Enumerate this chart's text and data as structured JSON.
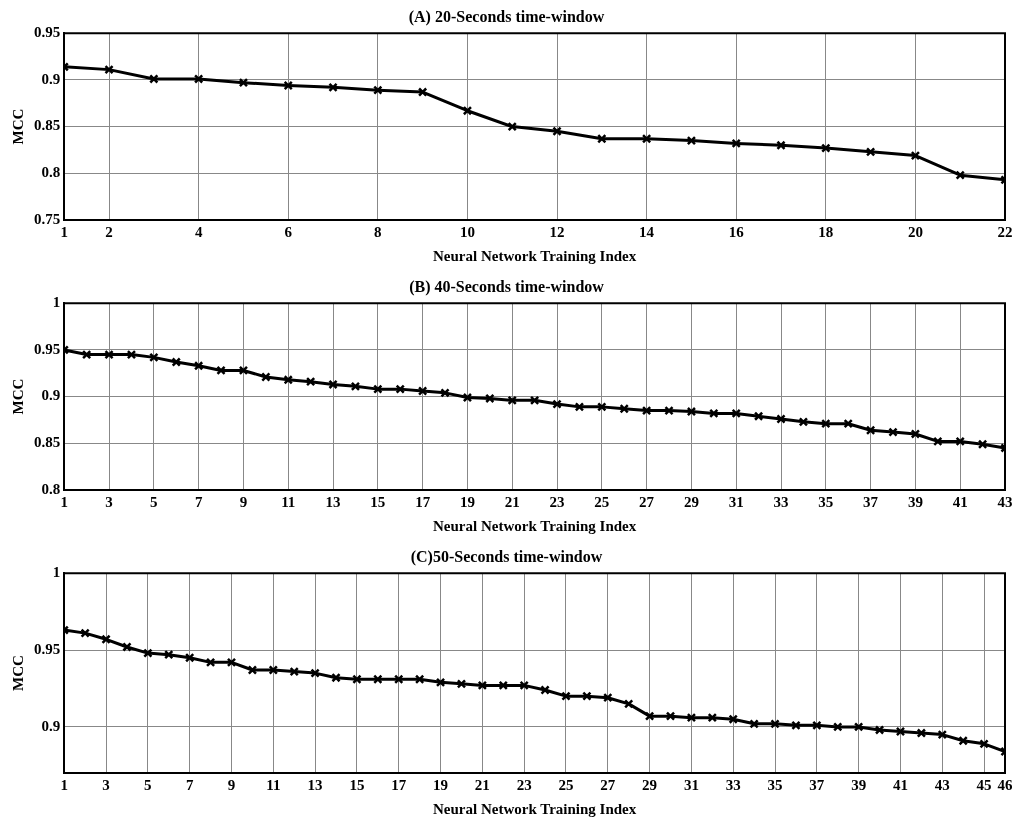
{
  "chart_data": [
    {
      "type": "line",
      "title": "(A) 20-Seconds time-window",
      "xlabel": "Neural Network Training Index",
      "ylabel": "MCC",
      "marker": "cross",
      "grid": true,
      "x": [
        1,
        2,
        3,
        4,
        5,
        6,
        7,
        8,
        9,
        10,
        11,
        12,
        13,
        14,
        15,
        16,
        17,
        18,
        19,
        20,
        21,
        22
      ],
      "series": [
        {
          "color": "#000000",
          "values": [
            0.914,
            0.911,
            0.901,
            0.901,
            0.897,
            0.894,
            0.892,
            0.889,
            0.887,
            0.867,
            0.85,
            0.845,
            0.837,
            0.837,
            0.835,
            0.832,
            0.83,
            0.827,
            0.823,
            0.819,
            0.798,
            0.793
          ]
        }
      ],
      "xlim": [
        1,
        22
      ],
      "xticks": [
        1,
        2,
        4,
        6,
        8,
        10,
        12,
        14,
        16,
        18,
        20,
        22
      ],
      "ylim": [
        0.75,
        0.95
      ],
      "yticks": [
        0.75,
        0.8,
        0.85,
        0.9,
        0.95
      ]
    },
    {
      "type": "line",
      "title": "(B) 40-Seconds time-window",
      "xlabel": "Neural Network Training Index",
      "ylabel": "MCC",
      "marker": "cross",
      "grid": true,
      "x": [
        1,
        2,
        3,
        4,
        5,
        6,
        7,
        8,
        9,
        10,
        11,
        12,
        13,
        14,
        15,
        16,
        17,
        18,
        19,
        20,
        21,
        22,
        23,
        24,
        25,
        26,
        27,
        28,
        29,
        30,
        31,
        32,
        33,
        34,
        35,
        36,
        37,
        38,
        39,
        40,
        41,
        42,
        43
      ],
      "series": [
        {
          "color": "#000000",
          "values": [
            0.95,
            0.945,
            0.945,
            0.945,
            0.942,
            0.937,
            0.933,
            0.928,
            0.928,
            0.921,
            0.918,
            0.916,
            0.913,
            0.911,
            0.908,
            0.908,
            0.906,
            0.904,
            0.899,
            0.898,
            0.896,
            0.896,
            0.892,
            0.889,
            0.889,
            0.887,
            0.885,
            0.885,
            0.884,
            0.882,
            0.882,
            0.879,
            0.876,
            0.873,
            0.871,
            0.871,
            0.864,
            0.862,
            0.86,
            0.852,
            0.852,
            0.849,
            0.845
          ]
        }
      ],
      "xlim": [
        1,
        43
      ],
      "xticks": [
        1,
        3,
        5,
        7,
        9,
        11,
        13,
        15,
        17,
        19,
        21,
        23,
        25,
        27,
        29,
        31,
        33,
        35,
        37,
        39,
        41,
        43
      ],
      "ylim": [
        0.8,
        1
      ],
      "yticks": [
        0.8,
        0.85,
        0.9,
        0.95,
        1
      ]
    },
    {
      "type": "line",
      "title": "(C)50-Seconds time-window",
      "xlabel": "Neural Network Training Index",
      "ylabel": "MCC",
      "marker": "cross",
      "grid": true,
      "x": [
        1,
        2,
        3,
        4,
        5,
        6,
        7,
        8,
        9,
        10,
        11,
        12,
        13,
        14,
        15,
        16,
        17,
        18,
        19,
        20,
        21,
        22,
        23,
        24,
        25,
        26,
        27,
        28,
        29,
        30,
        31,
        32,
        33,
        34,
        35,
        36,
        37,
        38,
        39,
        40,
        41,
        42,
        43,
        44,
        45,
        46
      ],
      "series": [
        {
          "color": "#000000",
          "values": [
            0.963,
            0.961,
            0.957,
            0.952,
            0.948,
            0.947,
            0.945,
            0.942,
            0.942,
            0.937,
            0.937,
            0.936,
            0.935,
            0.932,
            0.931,
            0.931,
            0.931,
            0.931,
            0.929,
            0.928,
            0.927,
            0.927,
            0.927,
            0.924,
            0.92,
            0.92,
            0.919,
            0.915,
            0.907,
            0.907,
            0.906,
            0.906,
            0.905,
            0.902,
            0.902,
            0.901,
            0.901,
            0.9,
            0.9,
            0.898,
            0.897,
            0.896,
            0.895,
            0.891,
            0.889,
            0.884
          ]
        }
      ],
      "xlim": [
        1,
        46
      ],
      "xticks": [
        1,
        3,
        5,
        7,
        9,
        11,
        13,
        15,
        17,
        19,
        21,
        23,
        25,
        27,
        29,
        31,
        33,
        35,
        37,
        39,
        41,
        43,
        45,
        46
      ],
      "ylim": [
        0.87,
        1
      ],
      "yticks": [
        0.9,
        0.95,
        1
      ]
    }
  ]
}
